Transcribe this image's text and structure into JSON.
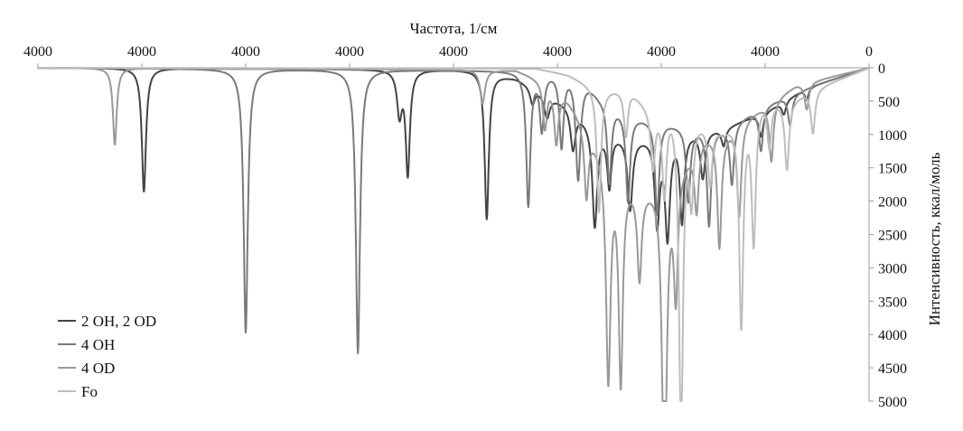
{
  "chart_data": {
    "type": "line",
    "title": "",
    "xlabel": "Частота, 1/см",
    "ylabel": "Интенсивность, ккал/моль",
    "x_axis_position": "top",
    "y_axis_position": "right",
    "y_inverted": true,
    "x_reversed": true,
    "xlim": [
      4000,
      0
    ],
    "ylim": [
      0,
      5000
    ],
    "x_tick_labels": [
      "4000",
      "4000",
      "4000",
      "4000",
      "4000",
      "4000",
      "4000",
      "4000",
      "0"
    ],
    "y_ticks": [
      0,
      500,
      1000,
      1500,
      2000,
      2500,
      3000,
      3500,
      4000,
      4500,
      5000
    ],
    "y_tick_labels": [
      "0",
      "500",
      "1000",
      "1500",
      "2000",
      "2500",
      "3000",
      "3500",
      "4000",
      "4500",
      "5000"
    ],
    "grid": false,
    "legend_position": "bottom-left",
    "series": [
      {
        "name": "2 OH, 2 OD",
        "color": "#444444",
        "baseline": [
          [
            4000,
            0
          ],
          [
            1900,
            30
          ],
          [
            1700,
            150
          ],
          [
            1600,
            300
          ],
          [
            1450,
            550
          ],
          [
            1300,
            900
          ],
          [
            1150,
            1050
          ],
          [
            1000,
            1000
          ],
          [
            850,
            950
          ],
          [
            700,
            900
          ],
          [
            500,
            650
          ],
          [
            300,
            300
          ],
          [
            0,
            0
          ]
        ],
        "peaks": [
          [
            3490,
            1850,
            12
          ],
          [
            2260,
            650,
            14
          ],
          [
            2220,
            1550,
            12
          ],
          [
            1840,
            2200,
            12
          ],
          [
            1620,
            250,
            14
          ],
          [
            1550,
            350,
            16
          ],
          [
            1425,
            600,
            14
          ],
          [
            1320,
            1500,
            14
          ],
          [
            1250,
            800,
            12
          ],
          [
            1150,
            1050,
            14
          ],
          [
            1020,
            1300,
            14
          ],
          [
            970,
            1500,
            14
          ],
          [
            900,
            1300,
            12
          ],
          [
            800,
            700,
            14
          ],
          [
            700,
            250,
            12
          ],
          [
            520,
            350,
            12
          ],
          [
            410,
            200,
            12
          ],
          [
            300,
            180,
            10
          ]
        ]
      },
      {
        "name": "4 OH",
        "color": "#7a7a7a",
        "baseline": [
          [
            4000,
            0
          ],
          [
            1400,
            50
          ],
          [
            1300,
            400
          ],
          [
            1150,
            700
          ],
          [
            1000,
            800
          ],
          [
            850,
            900
          ],
          [
            700,
            900
          ],
          [
            500,
            550
          ],
          [
            250,
            250
          ],
          [
            0,
            0
          ]
        ],
        "peaks": [
          [
            3000,
            3950,
            12
          ],
          [
            2460,
            4250,
            12
          ],
          [
            1640,
            2000,
            12
          ],
          [
            1575,
            850,
            12
          ],
          [
            1480,
            1100,
            12
          ],
          [
            1400,
            1600,
            14
          ],
          [
            1250,
            1200,
            12
          ],
          [
            1160,
            1300,
            12
          ],
          [
            1020,
            1400,
            12
          ],
          [
            870,
            1100,
            12
          ],
          [
            770,
            1450,
            12
          ],
          [
            660,
            900,
            12
          ],
          [
            520,
            650,
            12
          ],
          [
            380,
            450,
            12
          ]
        ]
      },
      {
        "name": "4 OD",
        "color": "#999999",
        "baseline": [
          [
            4000,
            0
          ],
          [
            1700,
            30
          ],
          [
            1550,
            200
          ],
          [
            1450,
            450
          ],
          [
            1350,
            900
          ],
          [
            1250,
            1400
          ],
          [
            1100,
            1800
          ],
          [
            950,
            1600
          ],
          [
            800,
            1000
          ],
          [
            700,
            950
          ],
          [
            550,
            650
          ],
          [
            350,
            250
          ],
          [
            0,
            0
          ]
        ],
        "peaks": [
          [
            3630,
            1150,
            11
          ],
          [
            1860,
            500,
            14
          ],
          [
            1560,
            700,
            12
          ],
          [
            1505,
            800,
            12
          ],
          [
            1360,
            1050,
            12
          ],
          [
            1255,
            3250,
            13
          ],
          [
            1195,
            3100,
            12
          ],
          [
            1105,
            1300,
            12
          ],
          [
            985,
            4900,
            13
          ],
          [
            930,
            1800,
            12
          ],
          [
            830,
            1000,
            12
          ],
          [
            720,
            1700,
            12
          ],
          [
            625,
            1400,
            12
          ],
          [
            470,
            900,
            12
          ],
          [
            300,
            400,
            12
          ]
        ]
      },
      {
        "name": "Fo",
        "color": "#bdbdbd",
        "baseline": [
          [
            4000,
            0
          ],
          [
            1600,
            10
          ],
          [
            1450,
            100
          ],
          [
            1300,
            300
          ],
          [
            1150,
            300
          ],
          [
            1050,
            600
          ],
          [
            950,
            500
          ],
          [
            850,
            700
          ],
          [
            700,
            900
          ],
          [
            600,
            600
          ],
          [
            500,
            400
          ],
          [
            400,
            500
          ],
          [
            300,
            350
          ],
          [
            0,
            0
          ]
        ],
        "peaks": [
          [
            1300,
            1850,
            12
          ],
          [
            1170,
            700,
            12
          ],
          [
            1040,
            850,
            12
          ],
          [
            985,
            1300,
            12
          ],
          [
            905,
            4850,
            12
          ],
          [
            855,
            1200,
            12
          ],
          [
            765,
            900,
            12
          ],
          [
            615,
            3200,
            12
          ],
          [
            555,
            2050,
            12
          ],
          [
            480,
            700,
            12
          ],
          [
            395,
            1000,
            12
          ],
          [
            270,
            650,
            12
          ]
        ]
      }
    ]
  }
}
